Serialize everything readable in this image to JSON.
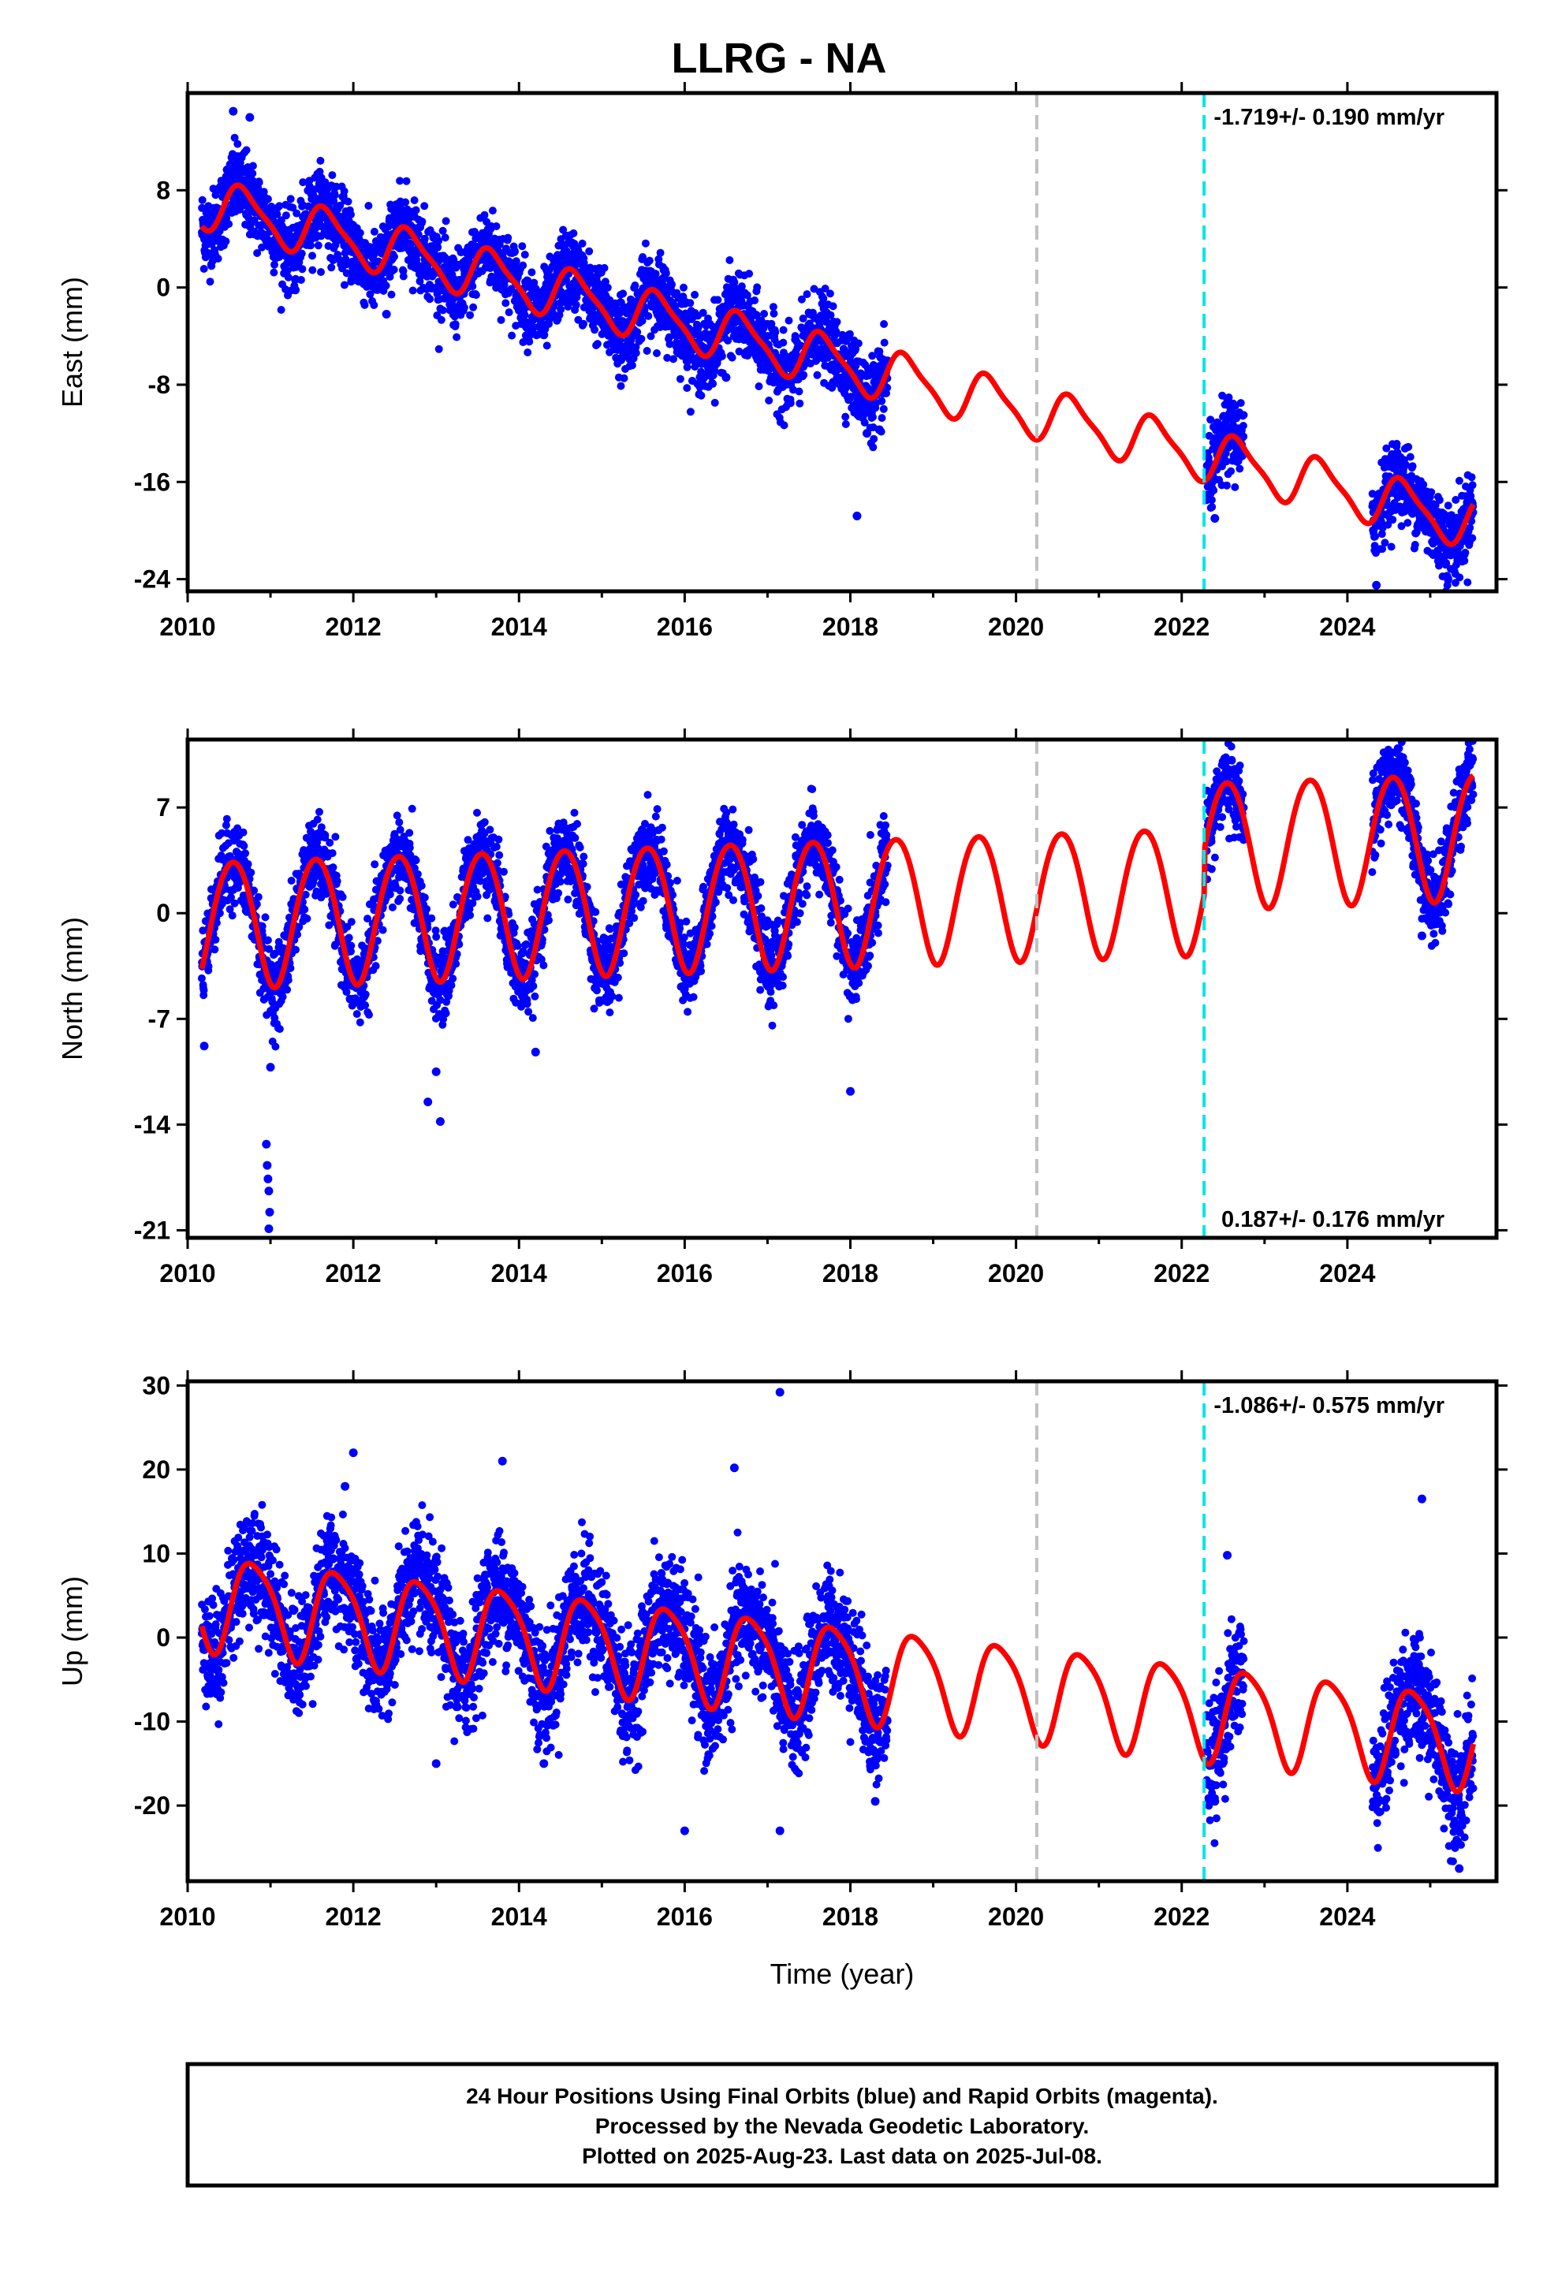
{
  "title": "LLRG - NA",
  "footer": {
    "line1": "24 Hour Positions Using Final Orbits (blue) and Rapid Orbits (magenta).",
    "line2": "Processed by the Nevada Geodetic Laboratory.",
    "line3": "Plotted on 2025-Aug-23. Last data on 2025-Jul-08."
  },
  "colors": {
    "data": "#0000ff",
    "model": "#ff0000",
    "event_gray": "#c0c0c0",
    "event_cyan": "#00e5e5"
  },
  "chart_data": [
    {
      "type": "scatter",
      "component": "east",
      "ylabel": "East (mm)",
      "xlabel": "",
      "xlim": [
        2010.0,
        2025.8
      ],
      "ylim": [
        -25.0,
        16.0
      ],
      "xticks": [
        2010,
        2012,
        2014,
        2016,
        2018,
        2020,
        2022,
        2024
      ],
      "yticks": [
        -24,
        -16,
        -8,
        0,
        8
      ],
      "rate_label": "-1.719+/- 0.190 mm/yr",
      "rate_position": "top-right",
      "events": [
        {
          "x": 2020.25,
          "color": "gray"
        },
        {
          "x": 2022.27,
          "color": "cyan"
        }
      ],
      "data_segments": [
        [
          2010.17,
          2018.45
        ],
        [
          2022.3,
          2022.75
        ],
        [
          2024.3,
          2025.52
        ]
      ],
      "model": {
        "intercept": 7.0,
        "t0": 2010.17,
        "rate": -1.719,
        "annual_amp": 2.0,
        "annual_peak": 2010.68,
        "semiannual_amp": 0.5,
        "semiannual_peak": 2010.55
      },
      "scatter_sd": 1.6,
      "outliers": [
        {
          "x": 2010.55,
          "y": 14.5
        },
        {
          "x": 2010.75,
          "y": 14.0
        },
        {
          "x": 2018.08,
          "y": -18.8
        },
        {
          "x": 2018.2,
          "y": -12.0
        },
        {
          "x": 2018.35,
          "y": -11.7
        },
        {
          "x": 2011.3,
          "y": -0.2
        },
        {
          "x": 2012.4,
          "y": -2.2
        },
        {
          "x": 2014.3,
          "y": -3.9
        },
        {
          "x": 2016.5,
          "y": -7.4
        },
        {
          "x": 2024.35,
          "y": -24.5
        },
        {
          "x": 2022.4,
          "y": -19.0
        },
        {
          "x": 2025.1,
          "y": -22.5
        }
      ]
    },
    {
      "type": "scatter",
      "component": "north",
      "ylabel": "North (mm)",
      "xlabel": "",
      "xlim": [
        2010.0,
        2025.8
      ],
      "ylim": [
        -21.5,
        11.5
      ],
      "xticks": [
        2010,
        2012,
        2014,
        2016,
        2018,
        2020,
        2022,
        2024
      ],
      "yticks": [
        -21,
        -14,
        -7,
        0,
        7
      ],
      "rate_label": "0.187+/- 0.176 mm/yr",
      "rate_position": "bottom-right",
      "events": [
        {
          "x": 2020.25,
          "color": "gray"
        },
        {
          "x": 2022.27,
          "color": "cyan"
        }
      ],
      "data_segments": [
        [
          2010.17,
          2018.45
        ],
        [
          2022.3,
          2022.75
        ],
        [
          2024.3,
          2025.52
        ]
      ],
      "model": {
        "intercept": -0.6,
        "t0": 2010.17,
        "rate": 0.187,
        "annual_amp": 4.2,
        "annual_peak": 2010.55,
        "semiannual_amp": 0.3,
        "semiannual_peak": 2010.3
      },
      "offsets": [
        {
          "x": 2022.27,
          "dy": 3.0
        }
      ],
      "scatter_sd": 1.3,
      "outliers": [
        {
          "x": 2010.95,
          "y": -15.3
        },
        {
          "x": 2010.96,
          "y": -16.7
        },
        {
          "x": 2010.97,
          "y": -17.6
        },
        {
          "x": 2010.98,
          "y": -18.4
        },
        {
          "x": 2010.99,
          "y": -19.8
        },
        {
          "x": 2010.98,
          "y": -20.9
        },
        {
          "x": 2010.2,
          "y": -8.8
        },
        {
          "x": 2011.0,
          "y": -10.2
        },
        {
          "x": 2012.9,
          "y": -12.5
        },
        {
          "x": 2013.05,
          "y": -13.8
        },
        {
          "x": 2013.0,
          "y": -10.5
        },
        {
          "x": 2014.2,
          "y": -9.2
        },
        {
          "x": 2018.0,
          "y": -11.8
        },
        {
          "x": 2024.9,
          "y": -1.5
        }
      ]
    },
    {
      "type": "scatter",
      "component": "up",
      "ylabel": "Up (mm)",
      "xlabel": "Time (year)",
      "xlim": [
        2010.0,
        2025.8
      ],
      "ylim": [
        -29.0,
        30.5
      ],
      "xticks": [
        2010,
        2012,
        2014,
        2016,
        2018,
        2020,
        2022,
        2024
      ],
      "yticks": [
        -20,
        -10,
        0,
        10,
        20,
        30
      ],
      "rate_label": "-1.086+/- 0.575 mm/yr",
      "rate_position": "top-right",
      "events": [
        {
          "x": 2020.25,
          "color": "gray"
        },
        {
          "x": 2022.27,
          "color": "cyan"
        }
      ],
      "data_segments": [
        [
          2010.17,
          2018.45
        ],
        [
          2022.3,
          2022.75
        ],
        [
          2024.3,
          2025.52
        ]
      ],
      "model": {
        "intercept": 4.5,
        "t0": 2010.17,
        "rate": -1.086,
        "annual_amp": 5.5,
        "annual_peak": 2010.8,
        "semiannual_amp": 1.0,
        "semiannual_peak": 2010.6
      },
      "scatter_sd": 3.4,
      "outliers": [
        {
          "x": 2017.15,
          "y": 29.2
        },
        {
          "x": 2012.0,
          "y": 22.0
        },
        {
          "x": 2013.8,
          "y": 21.0
        },
        {
          "x": 2016.0,
          "y": -23.0
        },
        {
          "x": 2017.15,
          "y": -23.0
        },
        {
          "x": 2025.35,
          "y": -27.5
        },
        {
          "x": 2024.9,
          "y": 16.5
        },
        {
          "x": 2022.4,
          "y": -19.5
        },
        {
          "x": 2011.9,
          "y": 18.0
        },
        {
          "x": 2013.0,
          "y": -15.0
        },
        {
          "x": 2014.3,
          "y": -15.0
        },
        {
          "x": 2018.3,
          "y": -19.5
        },
        {
          "x": 2016.6,
          "y": 20.2
        },
        {
          "x": 2022.55,
          "y": 9.8
        }
      ]
    }
  ]
}
